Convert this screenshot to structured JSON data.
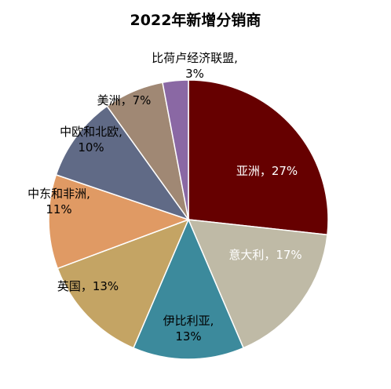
{
  "chart_data": {
    "type": "pie",
    "title": "2022年新增分销商",
    "slices": [
      {
        "label": "亚洲",
        "value": 27,
        "value_text": "27%",
        "color": "#660000",
        "text_color": "#ffffff"
      },
      {
        "label": "意大利",
        "value": 17,
        "value_text": "17%",
        "color": "#bfbaa6",
        "text_color": "#ffffff"
      },
      {
        "label": "伊比利亚",
        "value": 13,
        "value_text": "13%",
        "color": "#3c8a9c",
        "text_color": "#000000"
      },
      {
        "label": "英国",
        "value": 13,
        "value_text": "13%",
        "color": "#c4a464",
        "text_color": "#000000"
      },
      {
        "label": "中东和非洲",
        "value": 11,
        "value_text": "11%",
        "color": "#e09a64",
        "text_color": "#000000"
      },
      {
        "label": "中欧和北欧",
        "value": 10,
        "value_text": "10%",
        "color": "#606a86",
        "text_color": "#000000"
      },
      {
        "label": "美洲",
        "value": 7,
        "value_text": "7%",
        "color": "#a08874",
        "text_color": "#000000"
      },
      {
        "label": "比荷卢经济联盟",
        "value": 3,
        "value_text": "3%",
        "color": "#8a68a4",
        "text_color": "#000000"
      }
    ]
  }
}
